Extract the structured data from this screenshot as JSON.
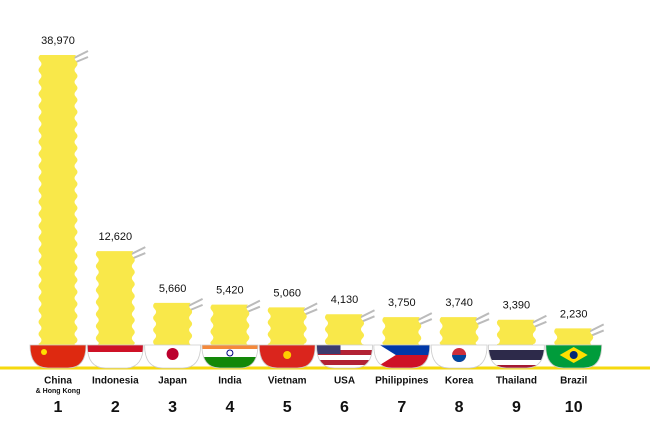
{
  "chart_data": {
    "type": "bar",
    "categories": [
      "China",
      "Indonesia",
      "Japan",
      "India",
      "Vietnam",
      "USA",
      "Philippines",
      "Korea",
      "Thailand",
      "Brazil"
    ],
    "category_subtitles": [
      "& Hong Kong",
      null,
      null,
      null,
      null,
      null,
      null,
      null,
      null,
      null
    ],
    "ranks": [
      1,
      2,
      3,
      4,
      5,
      6,
      7,
      8,
      9,
      10
    ],
    "values": [
      38970,
      12620,
      5660,
      5420,
      5060,
      4130,
      3750,
      3740,
      3390,
      2230
    ],
    "value_labels": [
      "38,970",
      "12,620",
      "5,660",
      "5,420",
      "5,060",
      "4,130",
      "3,750",
      "3,740",
      "3,390",
      "2,230"
    ],
    "color": "#f9e84a"
  }
}
